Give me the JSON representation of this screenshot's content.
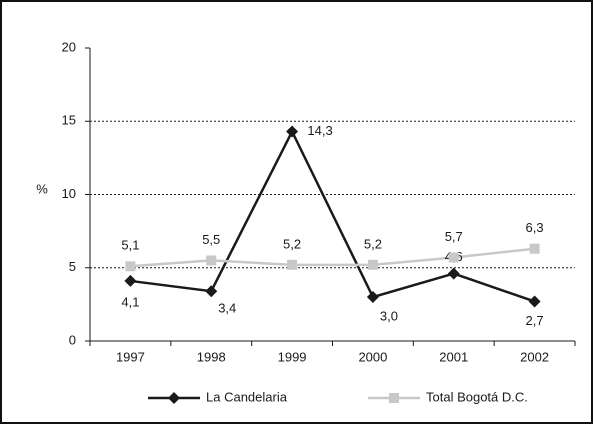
{
  "chart_data": {
    "type": "line",
    "categories": [
      "1997",
      "1998",
      "1999",
      "2000",
      "2001",
      "2002"
    ],
    "y_label": "%",
    "series": [
      {
        "name": "La Candelaria",
        "color": "#1a1a1a",
        "marker": "diamond",
        "values": [
          4.1,
          3.4,
          14.3,
          3.0,
          4.6,
          2.7
        ],
        "value_labels": [
          "4,1",
          "3,4",
          "14,3",
          "3,0",
          "4,6",
          "2,7"
        ]
      },
      {
        "name": "Total Bogotá D.C.",
        "color": "#c8c8c8",
        "marker": "square",
        "values": [
          5.1,
          5.5,
          5.2,
          5.2,
          5.7,
          6.3
        ],
        "value_labels": [
          "5,1",
          "5,5",
          "5,2",
          "5,2",
          "5,7",
          "6,3"
        ]
      }
    ],
    "ylim": [
      0,
      20
    ],
    "yticks": [
      0,
      5,
      10,
      15,
      20
    ],
    "grid": true,
    "legend": "bottom"
  }
}
